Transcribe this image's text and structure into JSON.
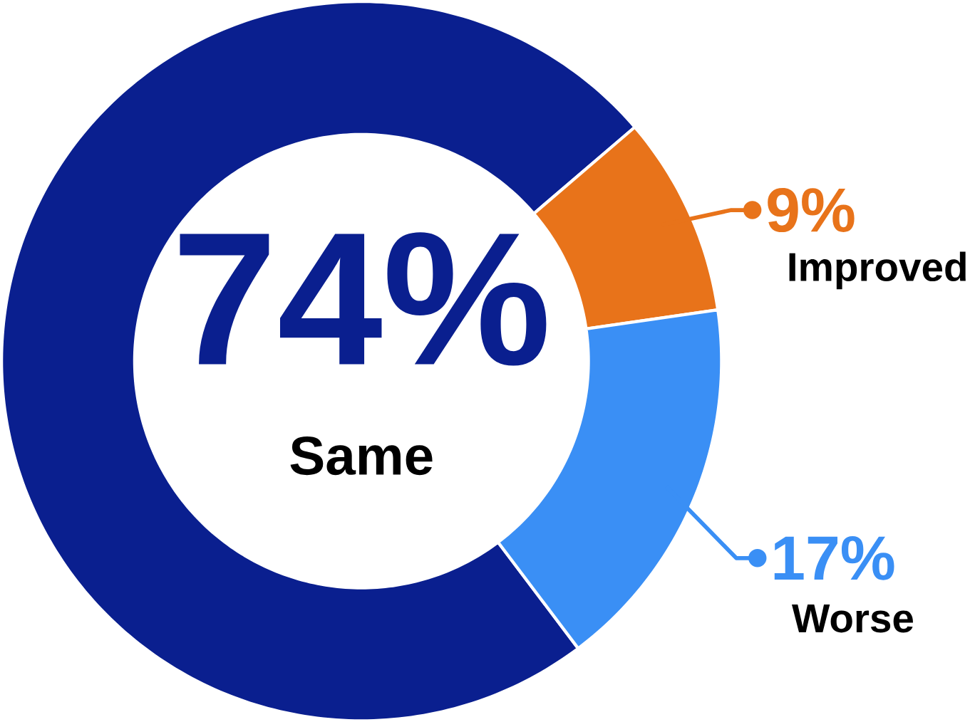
{
  "chart_data": {
    "type": "donut",
    "categories": [
      "Same",
      "Improved",
      "Worse"
    ],
    "values": [
      74,
      9,
      17
    ],
    "colors": [
      "#0a1f8f",
      "#e8731a",
      "#3a8ff5"
    ],
    "value_labels": [
      "74%",
      "9%",
      "17%"
    ],
    "legend": "right"
  }
}
